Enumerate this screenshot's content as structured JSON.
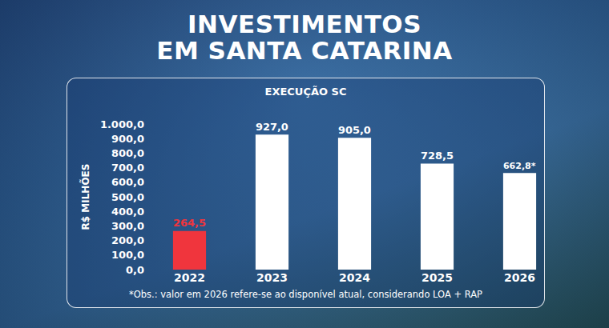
{
  "chart_data": {
    "type": "bar",
    "title": "INVESTIMENTOS\nEM SANTA CATARINA",
    "subtitle": "EXECUÇÃO SC",
    "y_label": "R$ MILHÕES",
    "note": "*Obs.: valor em 2026 refere-se ao disponível atual, considerando LOA + RAP",
    "categories": [
      "2022",
      "2023",
      "2024",
      "2025",
      "2026"
    ],
    "values": [
      264.5,
      927.0,
      905.0,
      728.5,
      662.8
    ],
    "value_labels": [
      "264,5",
      "927,0",
      "905,0",
      "728,5",
      "662,8*"
    ],
    "colors": [
      "#f0353d",
      "#ffffff",
      "#ffffff",
      "#ffffff",
      "#ffffff"
    ],
    "ylim": [
      0,
      1000
    ],
    "yticks": [
      {
        "value": 0,
        "label": "0,0"
      },
      {
        "value": 100,
        "label": "100,0"
      },
      {
        "value": 200,
        "label": "200,0"
      },
      {
        "value": 300,
        "label": "300,0"
      },
      {
        "value": 400,
        "label": "400,0"
      },
      {
        "value": 500,
        "label": "500,0"
      },
      {
        "value": 600,
        "label": "600,0"
      },
      {
        "value": 700,
        "label": "700,0"
      },
      {
        "value": 800,
        "label": "800,0"
      },
      {
        "value": 900,
        "label": "900,0"
      },
      {
        "value": 1000,
        "label": "1.000,0"
      }
    ],
    "grid": false,
    "data_labels": true
  }
}
